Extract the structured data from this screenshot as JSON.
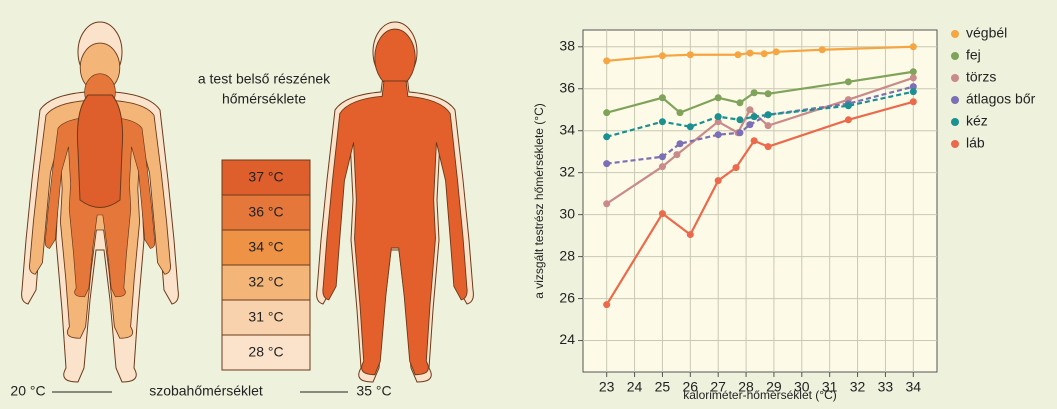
{
  "body_scale": {
    "title_lines": [
      "a test belső részének",
      "hőmérséklete"
    ],
    "items": [
      {
        "label": "37 °C",
        "color": "#de5f2b"
      },
      {
        "label": "36 °C",
        "color": "#e5773a"
      },
      {
        "label": "34 °C",
        "color": "#ee9246"
      },
      {
        "label": "32 °C",
        "color": "#f4b578"
      },
      {
        "label": "31 °C",
        "color": "#f8d2ac"
      },
      {
        "label": "28 °C",
        "color": "#fbe3cb"
      }
    ],
    "left_label": "20 °C",
    "middle_label": "szobahőmérséklet",
    "right_label": "35 °C"
  },
  "chart_data": {
    "type": "line",
    "x_label": "kaloriméter-hőmérséklet (°C)",
    "y_label": "a vizsgált testrész hőmérséklete (°C)",
    "xlim": [
      22.15,
      34.85
    ],
    "ylim": [
      22.5,
      38.8
    ],
    "xticks": [
      23,
      24,
      25,
      26,
      27,
      28,
      29,
      30,
      31,
      32,
      33,
      34
    ],
    "yticks": [
      24,
      26,
      28,
      30,
      32,
      34,
      36,
      38
    ],
    "grid": true,
    "series": [
      {
        "name": "végbél",
        "color": "#f5a542",
        "dashed": false,
        "x": [
          23,
          25,
          26,
          27.71,
          28.14,
          28.65,
          29.08,
          30.73,
          34
        ],
        "values": [
          37.33,
          37.57,
          37.62,
          37.62,
          37.7,
          37.67,
          37.76,
          37.86,
          38
        ]
      },
      {
        "name": "fej",
        "color": "#7fa35a",
        "dashed": false,
        "x": [
          23,
          25,
          25.63,
          27,
          27.78,
          28.29,
          28.79,
          31.67,
          34
        ],
        "values": [
          34.86,
          35.57,
          34.86,
          35.57,
          35.33,
          35.81,
          35.76,
          36.33,
          36.81
        ]
      },
      {
        "name": "törzs",
        "color": "#c98a8a",
        "dashed": false,
        "x": [
          23,
          25,
          25.52,
          27,
          27.71,
          28.14,
          28.79,
          31.67,
          34
        ],
        "values": [
          30.52,
          32.29,
          32.86,
          34.43,
          33.9,
          35.0,
          34.24,
          35.48,
          36.52
        ]
      },
      {
        "name": "átlagos bőr",
        "color": "#7b6fb5",
        "dashed": true,
        "x": [
          23,
          25,
          25.63,
          27,
          27.78,
          28.14,
          28.79,
          31.67,
          34
        ],
        "values": [
          32.43,
          32.76,
          33.38,
          33.81,
          33.9,
          34.29,
          34.76,
          35.29,
          36.1
        ]
      },
      {
        "name": "kéz",
        "color": "#1a9090",
        "dashed": true,
        "x": [
          23,
          25,
          26,
          27,
          27.78,
          28.29,
          28.79,
          31.67,
          34
        ],
        "values": [
          33.71,
          34.43,
          34.19,
          34.67,
          34.52,
          34.67,
          34.76,
          35.19,
          35.86
        ]
      },
      {
        "name": "láb",
        "color": "#ec6a4c",
        "dashed": false,
        "x": [
          23,
          25,
          26,
          27,
          27.64,
          28.29,
          28.79,
          31.67,
          34
        ],
        "values": [
          25.71,
          30.05,
          29.05,
          31.62,
          32.24,
          33.52,
          33.24,
          34.52,
          35.38
        ]
      }
    ]
  }
}
